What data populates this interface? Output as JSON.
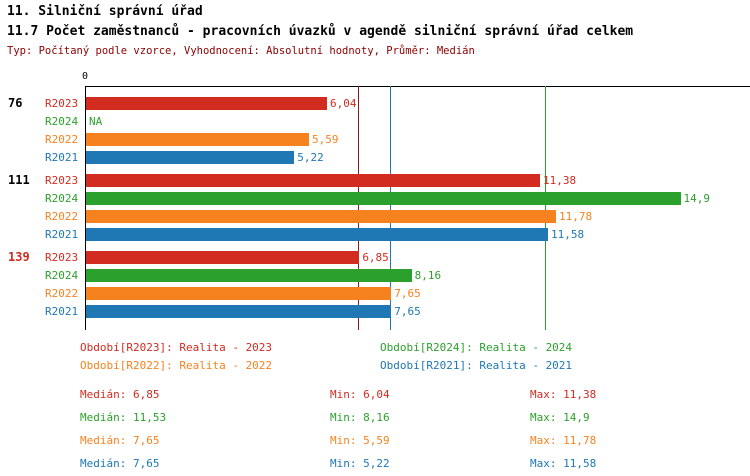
{
  "header": {
    "title_line1": "11. Silniční správní úřad",
    "title_line2": "11.7 Počet zaměstnanců - pracovních úvazků v agendě silniční správní úřad celkem",
    "subtitle": "Typ: Počítaný podle vzorce, Vyhodnocení: Absolutní hodnoty, Průměr: Medián"
  },
  "palette": {
    "R2023": "#d22b20",
    "R2024": "#2ca02c",
    "R2022": "#f5821f",
    "R2021": "#1f77b4",
    "subtitle_text": "#8b0000",
    "axis": "#000000",
    "median_R2023": "#8b1a1a",
    "median_R2024": "#2ca02c",
    "median_R2022": "#f5821f",
    "median_R2021": "#1f77b4"
  },
  "chart_data": {
    "type": "bar",
    "orientation": "horizontal",
    "origin_label": "0",
    "xlim": [
      0,
      16.65
    ],
    "grid": false,
    "series_order": [
      "R2023",
      "R2024",
      "R2022",
      "R2021"
    ],
    "groups": [
      {
        "label": "76",
        "label_color": "#000000",
        "bars": [
          {
            "series": "R2023",
            "value": 6.04,
            "display": "6,04"
          },
          {
            "series": "R2024",
            "value": null,
            "display": "NA"
          },
          {
            "series": "R2022",
            "value": 5.59,
            "display": "5,59"
          },
          {
            "series": "R2021",
            "value": 5.22,
            "display": "5,22"
          }
        ]
      },
      {
        "label": "111",
        "label_color": "#000000",
        "bars": [
          {
            "series": "R2023",
            "value": 11.38,
            "display": "11,38"
          },
          {
            "series": "R2024",
            "value": 14.9,
            "display": "14,9"
          },
          {
            "series": "R2022",
            "value": 11.78,
            "display": "11,78"
          },
          {
            "series": "R2021",
            "value": 11.58,
            "display": "11,58"
          }
        ]
      },
      {
        "label": "139",
        "label_color": "#d22b20",
        "bars": [
          {
            "series": "R2023",
            "value": 6.85,
            "display": "6,85"
          },
          {
            "series": "R2024",
            "value": 8.16,
            "display": "8,16"
          },
          {
            "series": "R2022",
            "value": 7.65,
            "display": "7,65"
          },
          {
            "series": "R2021",
            "value": 7.65,
            "display": "7,65"
          }
        ]
      }
    ],
    "median_lines": [
      {
        "series": "R2023",
        "value": 6.85
      },
      {
        "series": "R2022",
        "value": 7.65
      },
      {
        "series": "R2021",
        "value": 7.65
      },
      {
        "series": "R2024",
        "value": 11.53
      }
    ]
  },
  "legend": {
    "items": [
      {
        "series": "R2023",
        "text": "Období[R2023]: Realita - 2023"
      },
      {
        "series": "R2024",
        "text": "Období[R2024]: Realita - 2024"
      },
      {
        "series": "R2022",
        "text": "Období[R2022]: Realita - 2022"
      },
      {
        "series": "R2021",
        "text": "Období[R2021]: Realita - 2021"
      }
    ]
  },
  "stats": {
    "rows": [
      {
        "series": "R2023",
        "median": "Medián: 6,85",
        "min": "Min: 6,04",
        "max": "Max: 11,38"
      },
      {
        "series": "R2024",
        "median": "Medián: 11,53",
        "min": "Min: 8,16",
        "max": "Max: 14,9"
      },
      {
        "series": "R2022",
        "median": "Medián: 7,65",
        "min": "Min: 5,59",
        "max": "Max: 11,78"
      },
      {
        "series": "R2021",
        "median": "Medián: 7,65",
        "min": "Min: 5,22",
        "max": "Max: 11,58"
      }
    ]
  }
}
